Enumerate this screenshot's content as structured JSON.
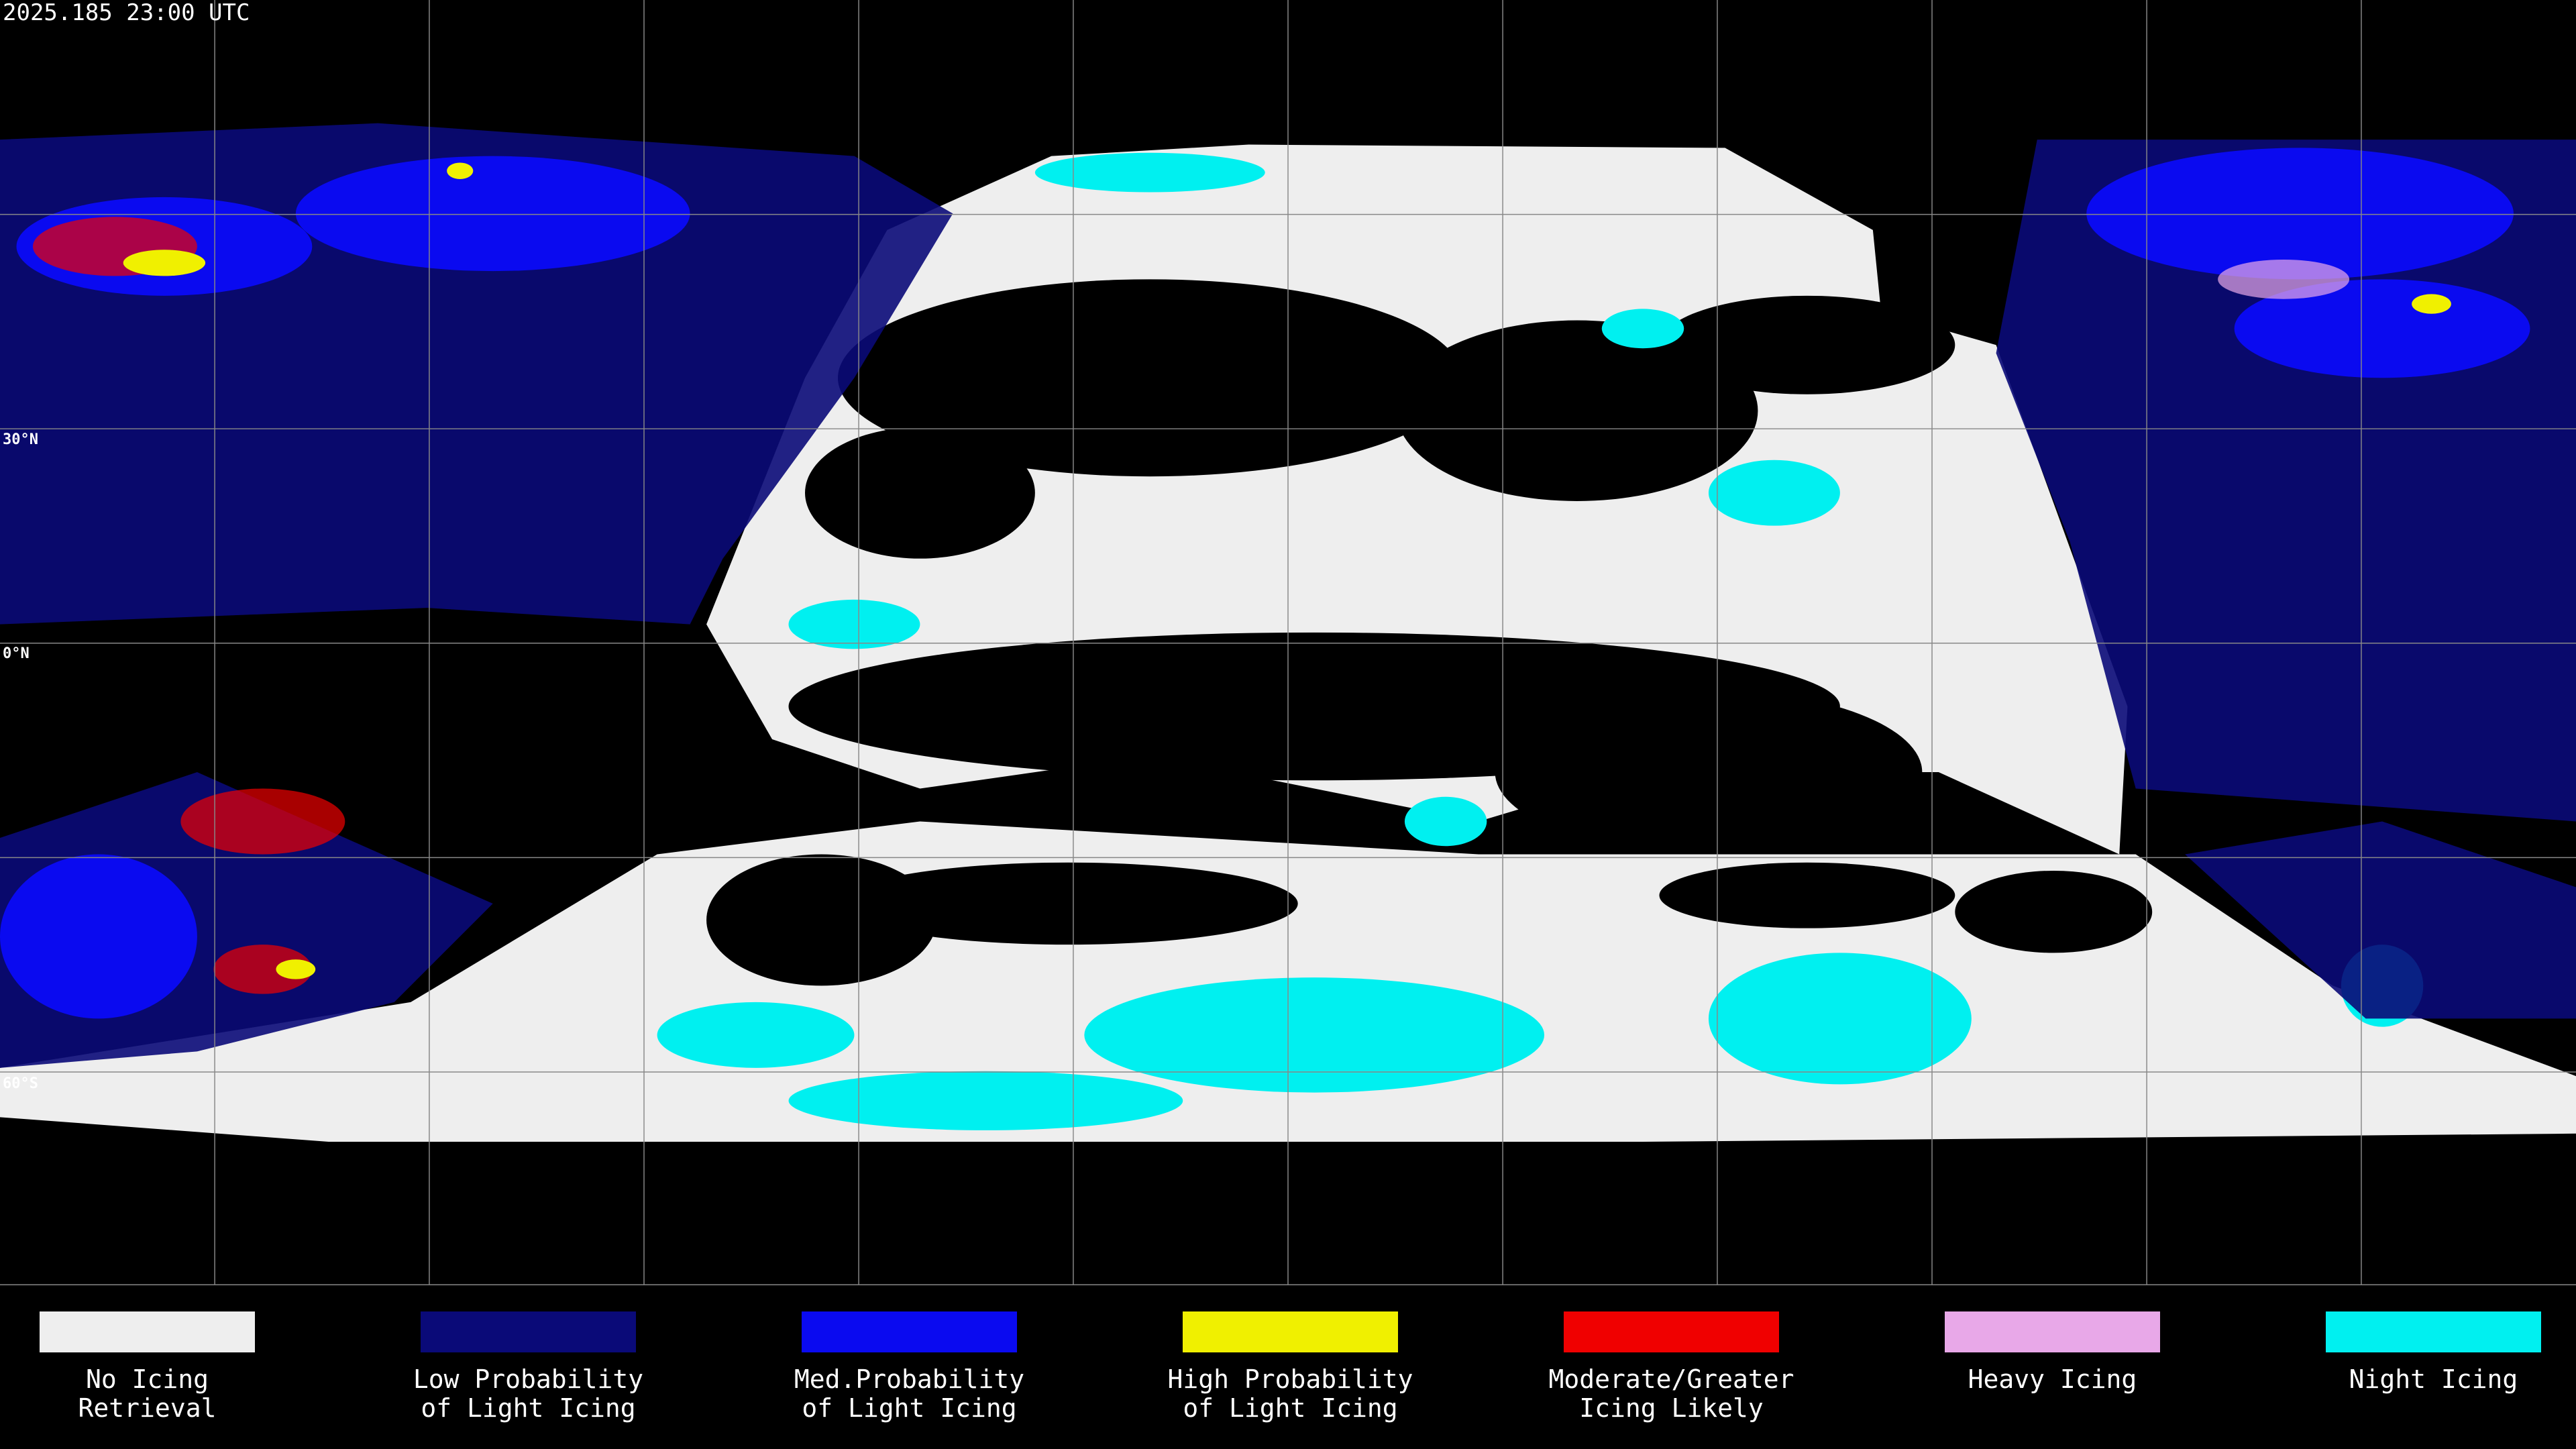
{
  "header": {
    "timestamp": "2025.185 23:00 UTC"
  },
  "map": {
    "latitude_labels": [
      "30°N",
      "0°N",
      "60°S"
    ]
  },
  "legend": {
    "items": [
      {
        "label": [
          "No Icing",
          "Retrieval"
        ],
        "color": "#eeeeee"
      },
      {
        "label": [
          "Low Probability",
          "of Light Icing"
        ],
        "color": "#0a0a78"
      },
      {
        "label": [
          "Med.Probability",
          "of Light Icing"
        ],
        "color": "#0a0af0"
      },
      {
        "label": [
          "High Probability",
          "of Light Icing"
        ],
        "color": "#f0f000"
      },
      {
        "label": [
          "Moderate/Greater",
          "Icing Likely"
        ],
        "color": "#f00000"
      },
      {
        "label": [
          "Heavy Icing"
        ],
        "color": "#e8a8e8"
      },
      {
        "label": [
          "Night Icing"
        ],
        "color": "#00f0f0"
      }
    ]
  }
}
